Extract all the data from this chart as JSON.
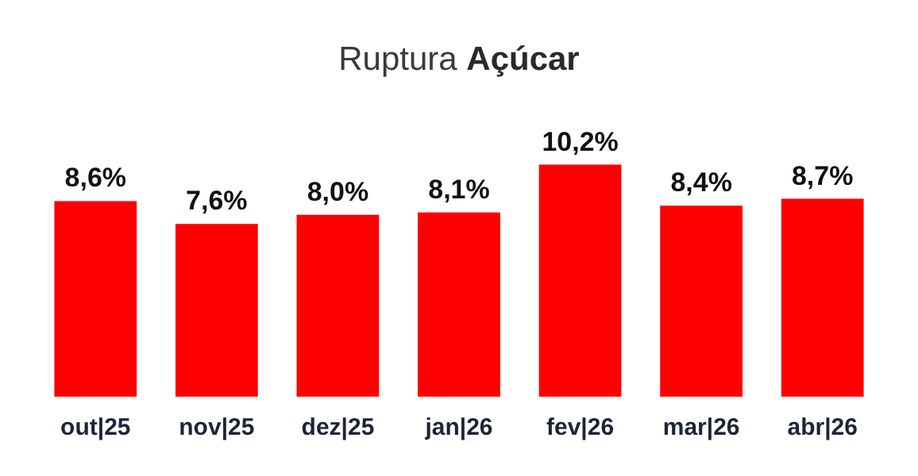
{
  "chart_data": {
    "type": "bar",
    "title": "Ruptura Açúcar",
    "categories": [
      "out|25",
      "nov|25",
      "dez|25",
      "jan|26",
      "fev|26",
      "mar|26",
      "abr|26"
    ],
    "values": [
      8.6,
      7.6,
      8.0,
      8.1,
      10.2,
      8.4,
      8.7
    ],
    "value_labels": [
      "8,6%",
      "7,6%",
      "8,0%",
      "8,1%",
      "10,2%",
      "8,4%",
      "8,7%"
    ],
    "color": "#ff0000",
    "grid": false
  }
}
